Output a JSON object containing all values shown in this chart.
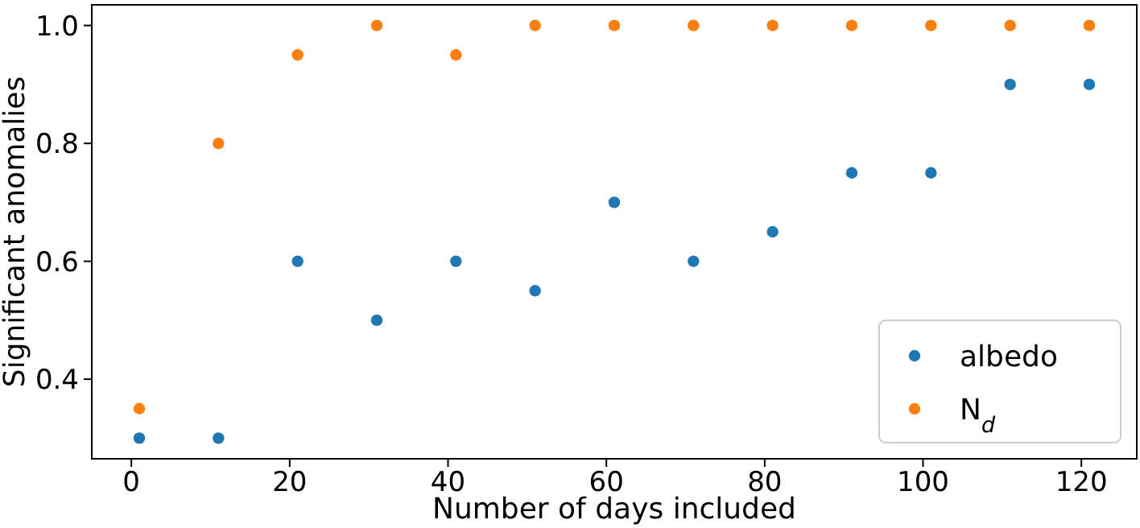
{
  "chart_data": {
    "type": "scatter",
    "xlabel": "Number of days included",
    "ylabel": "Significant anomalies",
    "x": [
      1,
      11,
      21,
      31,
      41,
      51,
      61,
      71,
      81,
      91,
      101,
      111,
      121
    ],
    "series": [
      {
        "name": "albedo",
        "color": "#1f77b4",
        "values": [
          0.3,
          0.3,
          0.6,
          0.5,
          0.6,
          0.55,
          0.7,
          0.6,
          0.65,
          0.75,
          0.75,
          0.9,
          0.9
        ]
      },
      {
        "name": "N$_{d}$",
        "color": "#ff7f0e",
        "values": [
          0.35,
          0.8,
          0.95,
          1.0,
          0.95,
          1.0,
          1.0,
          1.0,
          1.0,
          1.0,
          1.0,
          1.0,
          1.0
        ]
      }
    ],
    "xlim": [
      -5,
      127
    ],
    "xticks": [
      0,
      20,
      40,
      60,
      80,
      100,
      120
    ],
    "ylim": [
      0.265,
      1.035
    ],
    "yticks": [
      0.4,
      0.6,
      0.8,
      {
        "value": 1.0,
        "label": "1.0"
      }
    ],
    "legend": "bottom right",
    "marker": "circle",
    "grid": false
  }
}
